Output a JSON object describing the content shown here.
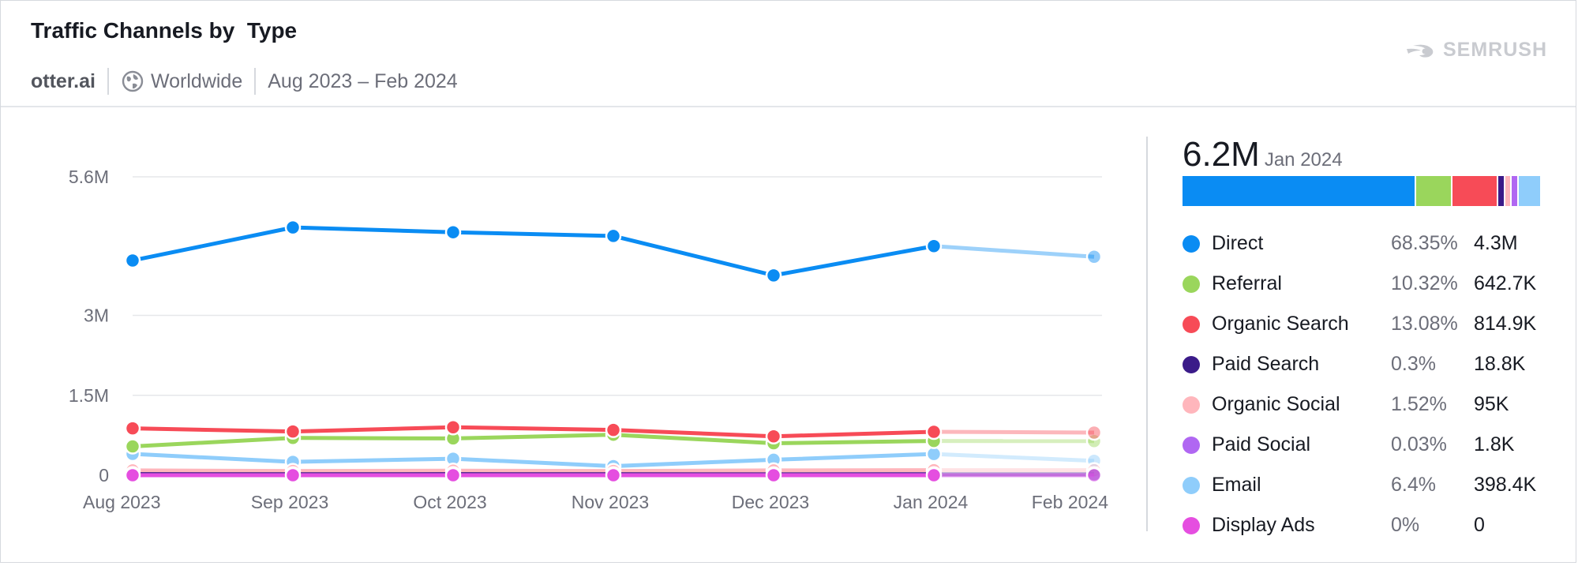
{
  "header": {
    "title": "Traffic Channels by  Type",
    "domain": "otter.ai",
    "region": "Worldwide",
    "date_range": "Aug 2023 – Feb 2024",
    "brand": "SEMRUSH"
  },
  "summary": {
    "total": "6.2M",
    "period": "Jan 2024"
  },
  "legend": [
    {
      "name": "Direct",
      "pct": "68.35%",
      "value": "4.3M",
      "color": "#0a8cf3"
    },
    {
      "name": "Referral",
      "pct": "10.32%",
      "value": "642.7K",
      "color": "#9ad65c"
    },
    {
      "name": "Organic Search",
      "pct": "13.08%",
      "value": "814.9K",
      "color": "#f74b57"
    },
    {
      "name": "Paid Search",
      "pct": "0.3%",
      "value": "18.8K",
      "color": "#3b1b89"
    },
    {
      "name": "Organic Social",
      "pct": "1.52%",
      "value": "95K",
      "color": "#ffb6bc"
    },
    {
      "name": "Paid Social",
      "pct": "0.03%",
      "value": "1.8K",
      "color": "#b067f2"
    },
    {
      "name": "Email",
      "pct": "6.4%",
      "value": "398.4K",
      "color": "#8fcdfb"
    },
    {
      "name": "Display Ads",
      "pct": "0%",
      "value": "0",
      "color": "#e54ee0"
    }
  ],
  "chart_data": {
    "type": "line",
    "x": [
      "Aug 2023",
      "Sep 2023",
      "Oct 2023",
      "Nov 2023",
      "Dec 2023",
      "Jan 2024",
      "Feb 2024"
    ],
    "y_ticks": [
      {
        "value": 0,
        "label": "0"
      },
      {
        "value": 1500000,
        "label": "1.5M"
      },
      {
        "value": 3000000,
        "label": "3M"
      },
      {
        "value": 5600000,
        "label": "5.6M"
      }
    ],
    "ylim": [
      0,
      5600000
    ],
    "projected_from_index": 5,
    "series": [
      {
        "name": "Email",
        "color": "#8fcdfb",
        "values": [
          400000,
          250000,
          310000,
          170000,
          290000,
          398400,
          270000
        ]
      },
      {
        "name": "Organic Social",
        "color": "#ffb6bc",
        "values": [
          90000,
          80000,
          85000,
          80000,
          90000,
          95000,
          95000
        ]
      },
      {
        "name": "Paid Search",
        "color": "#3b1b89",
        "values": [
          20000,
          18000,
          20000,
          18000,
          17000,
          18800,
          18000
        ]
      },
      {
        "name": "Paid Social",
        "color": "#b067f2",
        "values": [
          2000,
          2000,
          2000,
          2000,
          2000,
          1800,
          1800
        ]
      },
      {
        "name": "Display Ads",
        "color": "#e54ee0",
        "values": [
          0,
          0,
          0,
          0,
          0,
          0,
          0
        ]
      },
      {
        "name": "Referral",
        "color": "#9ad65c",
        "values": [
          540000,
          700000,
          690000,
          760000,
          600000,
          642700,
          640000
        ]
      },
      {
        "name": "Organic Search",
        "color": "#f74b57",
        "values": [
          880000,
          820000,
          900000,
          850000,
          730000,
          814900,
          800000
        ]
      },
      {
        "name": "Direct",
        "color": "#0a8cf3",
        "values": [
          4030000,
          4650000,
          4560000,
          4490000,
          3750000,
          4300000,
          4100000
        ]
      }
    ]
  }
}
